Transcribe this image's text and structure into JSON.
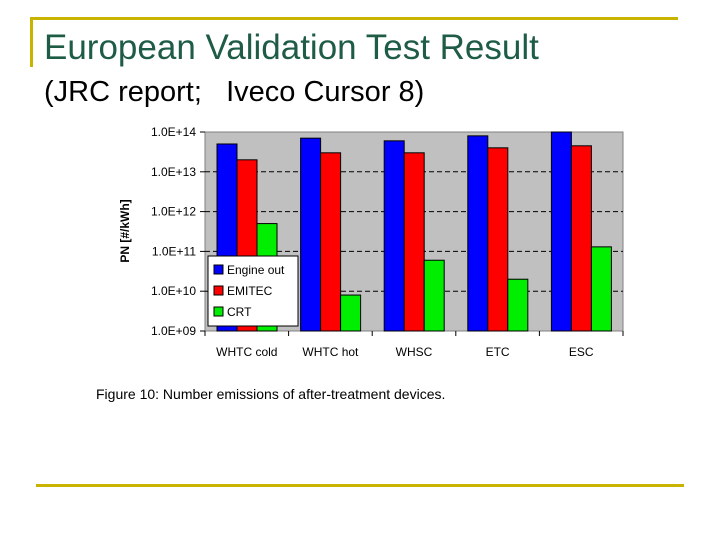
{
  "slide": {
    "title": "European Validation Test Result",
    "subtitle": "(JRC report;   Iveco Cursor 8)",
    "caption": "Figure 10: Number emissions of after-treatment devices."
  },
  "colors": {
    "accent_line": "#c8b400",
    "title": "#1f5c45",
    "plot_area": "#c0c0c0"
  },
  "chart_data": {
    "type": "bar",
    "title": "",
    "xlabel": "",
    "ylabel": "PN [#/kWh]",
    "yscale": "log",
    "ylim": [
      1000000000.0,
      100000000000000.0
    ],
    "yticks": [
      1000000000.0,
      10000000000.0,
      100000000000.0,
      1000000000000.0,
      10000000000000.0,
      100000000000000.0
    ],
    "ytick_labels": [
      "1.0E+09",
      "1.0E+10",
      "1.0E+11",
      "1.0E+12",
      "1.0E+13",
      "1.0E+14"
    ],
    "grid": "horizontal dashed",
    "legend_position": "lower-left",
    "categories": [
      "WHTC cold",
      "WHTC hot",
      "WHSC",
      "ETC",
      "ESC"
    ],
    "series": [
      {
        "name": "Engine out",
        "color": "#0000ff",
        "values": [
          50000000000000.0,
          70000000000000.0,
          60000000000000.0,
          80000000000000.0,
          100000000000000.0
        ]
      },
      {
        "name": "EMITEC",
        "color": "#ff0000",
        "values": [
          20000000000000.0,
          30000000000000.0,
          30000000000000.0,
          40000000000000.0,
          45000000000000.0
        ]
      },
      {
        "name": "CRT",
        "color": "#00ee00",
        "values": [
          500000000000.0,
          8000000000.0,
          60000000000.0,
          20000000000.0,
          130000000000.0
        ]
      }
    ]
  }
}
